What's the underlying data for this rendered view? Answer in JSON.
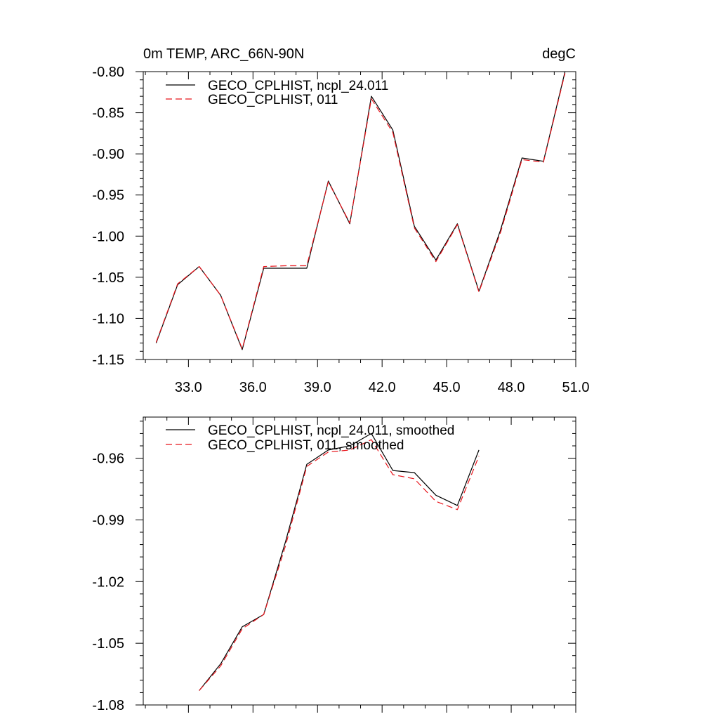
{
  "colors": {
    "series_1": "#000000",
    "series_2": "#e8141b",
    "axis": "#000000",
    "background": "#ffffff"
  },
  "chart_data": [
    {
      "type": "line",
      "title": "0m TEMP, ARC_66N-90N",
      "units": "degC",
      "xlabel": "",
      "ylabel": "",
      "xlim": [
        30.9,
        51.0
      ],
      "ylim": [
        -1.15,
        -0.8
      ],
      "x_ticks": [
        33.0,
        36.0,
        39.0,
        42.0,
        45.0,
        48.0,
        51.0
      ],
      "x_tick_labels": [
        "33.0",
        "36.0",
        "39.0",
        "42.0",
        "45.0",
        "48.0",
        "51.0"
      ],
      "y_ticks": [
        -1.15,
        -1.1,
        -1.05,
        -1.0,
        -0.95,
        -0.9,
        -0.85,
        -0.8
      ],
      "y_tick_labels": [
        "-1.15",
        "-1.10",
        "-1.05",
        "-1.00",
        "-0.95",
        "-0.90",
        "-0.85",
        "-0.80"
      ],
      "grid": false,
      "legend_position": "top-left",
      "x": [
        31.5,
        32.5,
        33.5,
        34.5,
        35.5,
        36.5,
        37.5,
        38.5,
        39.5,
        40.5,
        41.5,
        42.5,
        43.5,
        44.5,
        45.5,
        46.5,
        47.5,
        48.5,
        49.5,
        50.5
      ],
      "series": [
        {
          "name": "GECO_CPLHIST, ncpl_24.011",
          "style": "solid",
          "values": [
            -1.13,
            -1.059,
            -1.037,
            -1.072,
            -1.138,
            -1.039,
            -1.039,
            -1.039,
            -0.933,
            -0.985,
            -0.83,
            -0.871,
            -0.988,
            -1.029,
            -0.985,
            -1.067,
            -0.993,
            -0.905,
            -0.909,
            -0.8
          ]
        },
        {
          "name": "GECO_CPLHIST, 011",
          "style": "dashed",
          "values": [
            -1.129,
            -1.058,
            -1.037,
            -1.072,
            -1.137,
            -1.037,
            -1.036,
            -1.036,
            -0.934,
            -0.984,
            -0.833,
            -0.874,
            -0.99,
            -1.031,
            -0.986,
            -1.068,
            -0.996,
            -0.907,
            -0.91,
            -0.802
          ]
        }
      ]
    },
    {
      "type": "line",
      "title": "",
      "xlabel": "",
      "ylabel": "",
      "xlim": [
        30.9,
        51.0
      ],
      "ylim": [
        -1.08,
        -0.94
      ],
      "x_ticks": [
        33.0,
        36.0,
        39.0,
        42.0,
        45.0,
        48.0,
        51.0
      ],
      "y_ticks": [
        -1.08,
        -1.05,
        -1.02,
        -0.99,
        -0.96
      ],
      "y_tick_labels": [
        "-1.08",
        "-1.05",
        "-1.02",
        "-0.99",
        "-0.96"
      ],
      "grid": false,
      "legend_position": "top-left",
      "x": [
        33.5,
        34.5,
        35.5,
        36.5,
        37.5,
        38.5,
        39.5,
        40.5,
        41.5,
        42.5,
        43.5,
        44.5,
        45.5,
        46.5,
        47.5
      ],
      "series": [
        {
          "name": "GECO_CPLHIST, ncpl_24.011, smoothed",
          "style": "solid",
          "values": [
            -1.073,
            -1.06,
            -1.042,
            -1.036,
            -1.001,
            -0.963,
            -0.956,
            -0.954,
            -0.948,
            -0.966,
            -0.967,
            -0.978,
            -0.983,
            -0.956,
            null
          ]
        },
        {
          "name": "GECO_CPLHIST, 011, smoothed",
          "style": "dashed",
          "values": [
            -1.073,
            -1.061,
            -1.043,
            -1.036,
            -1.003,
            -0.964,
            -0.957,
            -0.956,
            -0.951,
            -0.968,
            -0.97,
            -0.981,
            -0.985,
            -0.959,
            null
          ]
        }
      ]
    }
  ]
}
